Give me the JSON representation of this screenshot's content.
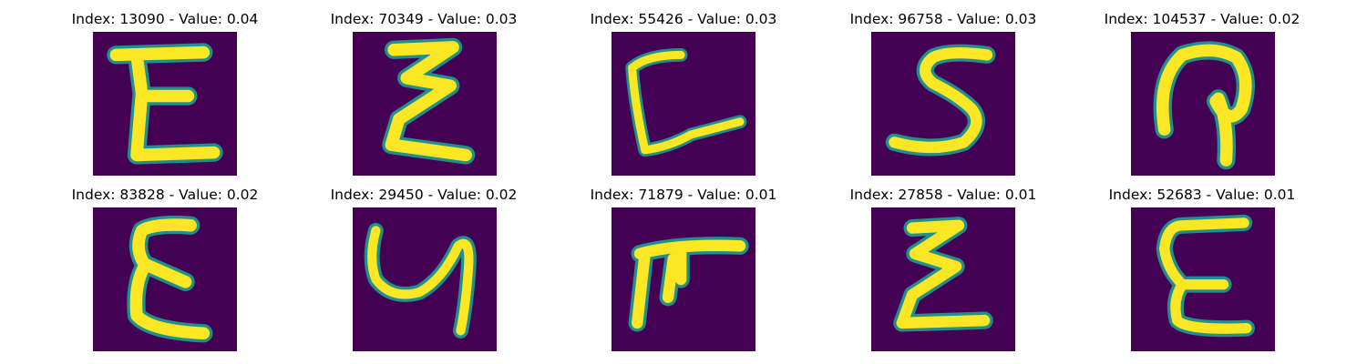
{
  "panels": [
    {
      "title": "Index: 13090 - Value: 0.04",
      "glyph": "E-like"
    },
    {
      "title": "Index: 70349 - Value: 0.03",
      "glyph": "zigzag E"
    },
    {
      "title": "Index: 55426 - Value: 0.03",
      "glyph": "L-like"
    },
    {
      "title": "Index: 96758 - Value: 0.03",
      "glyph": "S-like"
    },
    {
      "title": "Index: 104537 - Value: 0.02",
      "glyph": "loop"
    },
    {
      "title": "Index: 83828 - Value: 0.02",
      "glyph": "E-like"
    },
    {
      "title": "Index: 29450 - Value: 0.02",
      "glyph": "y-like"
    },
    {
      "title": "Index: 71879 - Value: 0.01",
      "glyph": "F-like"
    },
    {
      "title": "Index: 27858 - Value: 0.01",
      "glyph": "zigzag E"
    },
    {
      "title": "Index: 52683 - Value: 0.01",
      "glyph": "E-like"
    }
  ],
  "colors": {
    "background": "#440154",
    "stroke": "#fde725",
    "edge": "#21908d"
  }
}
